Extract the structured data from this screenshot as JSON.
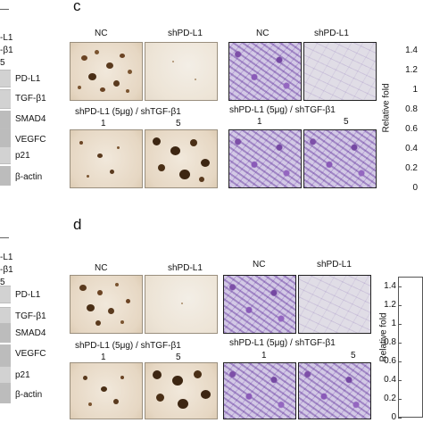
{
  "left_panel_c": {
    "header_dash": "—",
    "header_lines": [
      "-L1",
      "-β1",
      "5"
    ],
    "blot_labels": [
      "PD-L1",
      "TGF-β1",
      "SMAD4",
      "VEGFC",
      "p21",
      "β-actin"
    ]
  },
  "left_panel_d": {
    "header_dash": "—",
    "header_lines": [
      "-L1",
      "-β1",
      "5"
    ],
    "blot_labels": [
      "PD-L1",
      "TGF-β1",
      "SMAD4",
      "VEGFC",
      "p21",
      "β-actin"
    ]
  },
  "panel_c": {
    "letter": "c",
    "col_labels": [
      "NC",
      "shPD-L1"
    ],
    "inv_labels": [
      "NC",
      "shPD-L1"
    ],
    "combo_label": "shPD-L1 (5μg) / shTGF-β1",
    "combo_doses": [
      "1",
      "5"
    ],
    "chart": {
      "ylabel": "Relative fold",
      "ticks": [
        "1.4",
        "1.2",
        "1",
        "0.8",
        "0.6",
        "0.4",
        "0.2",
        "0"
      ]
    }
  },
  "panel_d": {
    "letter": "d",
    "col_labels": [
      "NC",
      "shPD-L1"
    ],
    "inv_labels": [
      "NC",
      "shPD-L1"
    ],
    "combo_label": "shPD-L1 (5μg) / shTGF-β1",
    "combo_doses": [
      "1",
      "5"
    ],
    "chart": {
      "ylabel": "Relative fold",
      "ticks": [
        "1.4",
        "1.2",
        "1",
        "0.8",
        "0.6",
        "0.4",
        "0.2",
        "0"
      ]
    }
  },
  "colors": {
    "frame": "#222222",
    "colony_dot": "#5a3a1e",
    "invasion_purple": "#7d4fa8"
  }
}
